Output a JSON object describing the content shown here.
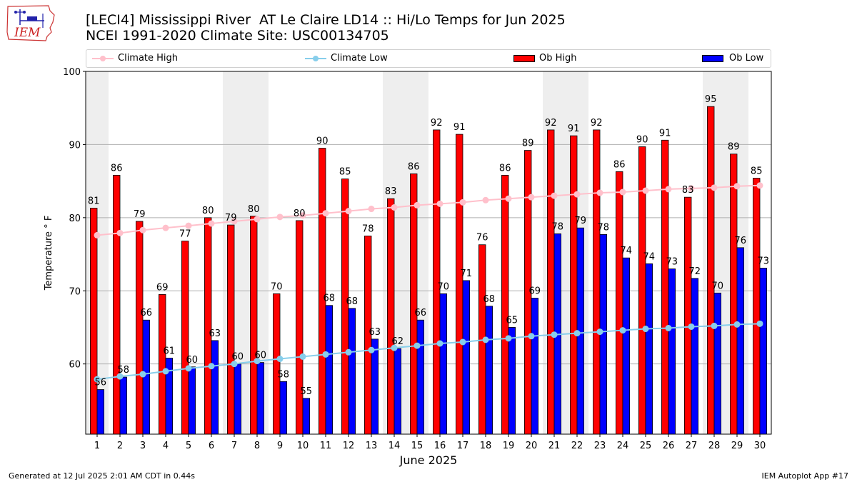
{
  "logo": {
    "text": "IEM",
    "icon": "iowa-map-weather-station-icon"
  },
  "title": {
    "line1": "[LECI4] Mississippi River  AT Le Claire LD14 :: Hi/Lo Temps for Jun 2025",
    "line2": "NCEI 1991-2020 Climate Site: USC00134705"
  },
  "legend": {
    "climate_high": "Climate High",
    "climate_low": "Climate Low",
    "ob_high": "Ob High",
    "ob_low": "Ob Low"
  },
  "footer": {
    "left": "Generated at 12 Jul 2025 2:01 AM CDT in 0.44s",
    "right": "IEM Autoplot App #17"
  },
  "colors": {
    "ob_high": "#ff0000",
    "ob_low": "#0000ff",
    "climate_high": "#ffc0cb",
    "climate_low": "#87ceeb",
    "weekend_band": "#eeeeee",
    "grid": "#b0b0b0"
  },
  "chart_data": {
    "type": "bar",
    "xlabel": "June 2025",
    "ylabel": "Temperature ° F",
    "ylim": [
      50.4,
      100
    ],
    "yticks": [
      60,
      70,
      80,
      90,
      100
    ],
    "grid": "horizontal",
    "legend_position": "top",
    "categories": [
      1,
      2,
      3,
      4,
      5,
      6,
      7,
      8,
      9,
      10,
      11,
      12,
      13,
      14,
      15,
      16,
      17,
      18,
      19,
      20,
      21,
      22,
      23,
      24,
      25,
      26,
      27,
      28,
      29,
      30
    ],
    "shaded_days": [
      1,
      7,
      8,
      14,
      15,
      21,
      22,
      28,
      29
    ],
    "series": [
      {
        "name": "Ob High",
        "kind": "bar",
        "values": [
          81.3,
          85.8,
          79.5,
          69.5,
          76.8,
          80.0,
          79.0,
          80.2,
          69.6,
          79.6,
          89.5,
          85.3,
          77.5,
          82.6,
          86.0,
          92.0,
          91.4,
          76.3,
          85.8,
          89.2,
          92.0,
          91.2,
          92.0,
          86.3,
          89.7,
          90.6,
          82.8,
          95.2,
          88.7,
          85.4
        ],
        "labels": [
          "81",
          "86",
          "79",
          "69",
          "77",
          "80",
          "79",
          "80",
          "70",
          "80",
          "90",
          "85",
          "78",
          "83",
          "86",
          "92",
          "91",
          "76",
          "86",
          "89",
          "92",
          "91",
          "92",
          "86",
          "90",
          "91",
          "83",
          "95",
          "89",
          "85"
        ]
      },
      {
        "name": "Ob Low",
        "kind": "bar",
        "values": [
          56.5,
          58.2,
          66.0,
          60.8,
          59.6,
          63.2,
          60.0,
          60.2,
          57.6,
          55.3,
          68.0,
          67.6,
          63.4,
          62.1,
          66.0,
          69.6,
          71.4,
          67.9,
          65.0,
          69.0,
          77.8,
          78.6,
          77.7,
          74.5,
          73.7,
          73.0,
          71.7,
          69.7,
          75.9,
          73.1
        ],
        "labels": [
          "56",
          "58",
          "66",
          "61",
          "60",
          "63",
          "60",
          "60",
          "58",
          "55",
          "68",
          "68",
          "63",
          "62",
          "66",
          "70",
          "71",
          "68",
          "65",
          "69",
          "78",
          "79",
          "78",
          "74",
          "74",
          "73",
          "72",
          "70",
          "76",
          "73"
        ]
      },
      {
        "name": "Climate High",
        "kind": "line",
        "values": [
          77.6,
          77.9,
          78.3,
          78.6,
          78.9,
          79.2,
          79.5,
          79.8,
          80.1,
          80.3,
          80.6,
          80.9,
          81.2,
          81.4,
          81.7,
          81.9,
          82.1,
          82.4,
          82.6,
          82.8,
          83.0,
          83.2,
          83.4,
          83.5,
          83.7,
          83.9,
          84.0,
          84.1,
          84.3,
          84.4
        ]
      },
      {
        "name": "Climate Low",
        "kind": "line",
        "values": [
          57.9,
          58.3,
          58.6,
          59.0,
          59.4,
          59.7,
          60.0,
          60.4,
          60.7,
          61.0,
          61.3,
          61.6,
          61.9,
          62.2,
          62.5,
          62.8,
          63.0,
          63.3,
          63.5,
          63.8,
          64.0,
          64.2,
          64.4,
          64.6,
          64.8,
          64.9,
          65.1,
          65.2,
          65.4,
          65.5
        ]
      }
    ]
  }
}
